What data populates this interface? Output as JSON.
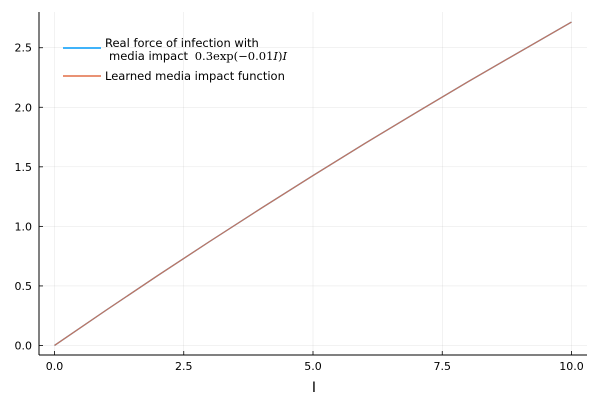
{
  "chart_data": {
    "type": "line",
    "xlabel": "I",
    "ylabel": "",
    "title": "",
    "xlim": [
      -0.3,
      10.3
    ],
    "ylim": [
      -0.08,
      2.8
    ],
    "xticks": [
      0.0,
      2.5,
      5.0,
      7.5,
      10.0
    ],
    "xtick_labels": [
      "0.0",
      "2.5",
      "5.0",
      "7.5",
      "10.0"
    ],
    "yticks": [
      0.0,
      0.5,
      1.0,
      1.5,
      2.0,
      2.5
    ],
    "ytick_labels": [
      "0.0",
      "0.5",
      "1.0",
      "1.5",
      "2.0",
      "2.5"
    ],
    "grid": true,
    "legend_position": "top-left",
    "x": [
      0.0,
      1.0,
      2.0,
      3.0,
      4.0,
      5.0,
      6.0,
      7.0,
      8.0,
      9.0,
      10.0
    ],
    "series": [
      {
        "name_line1": "Real force of infection with",
        "name_line2_text": "media impact",
        "name_line2_math_a": "0.3exp(−0.01",
        "name_line2_math_b": "I",
        "name_line2_math_c": ")",
        "name_line2_math_d": "I",
        "color": "#009af9",
        "values": [
          0.0,
          0.297,
          0.588,
          0.873,
          1.153,
          1.427,
          1.695,
          1.957,
          2.215,
          2.466,
          2.715
        ]
      },
      {
        "name": "Learned media impact function",
        "color": "#e26f46",
        "values": [
          0.0,
          0.297,
          0.588,
          0.873,
          1.153,
          1.427,
          1.695,
          1.957,
          2.215,
          2.466,
          2.715
        ]
      }
    ]
  }
}
